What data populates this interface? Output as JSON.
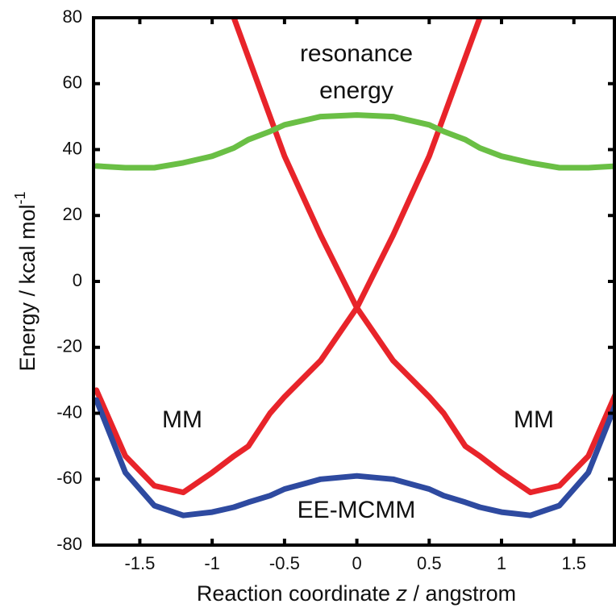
{
  "chart_data": {
    "type": "line",
    "x_label": [
      "Reaction coordinate ",
      "z",
      " / angstrom"
    ],
    "y_label": "Energy / kcal mol",
    "y_label_sup": "-1",
    "annotations": [
      "resonance",
      "energy",
      "MM",
      "MM",
      "EE-MCMM"
    ],
    "x": [
      -1.8,
      -1.6,
      -1.4,
      -1.2,
      -1,
      -0.85,
      -0.75,
      -0.6,
      -0.5,
      -0.25,
      0,
      0.25,
      0.5,
      0.6,
      0.75,
      0.85,
      1,
      1.2,
      1.4,
      1.6,
      1.8
    ],
    "series": [
      {
        "color": "#e8242a",
        "values": [
          null,
          null,
          null,
          null,
          null,
          80,
          68,
          50,
          38,
          14,
          -8,
          -24,
          -35,
          -40,
          -50,
          -53,
          -58,
          -64,
          -62,
          -53,
          -33
        ]
      },
      {
        "color": "#e8242a",
        "values": [
          -33,
          -53,
          -62,
          -64,
          -58,
          -53,
          -50,
          -40,
          -35,
          -24,
          -8,
          14,
          38,
          50,
          68,
          80,
          null,
          null,
          null,
          null,
          null
        ]
      },
      {
        "color": "#2e4aa0",
        "values": [
          -36,
          -58,
          -68,
          -71,
          -70,
          -68.5,
          -67,
          -65,
          -63,
          -60,
          -59,
          -60,
          -63,
          -65,
          -67,
          -68.5,
          -70,
          -71,
          -68,
          -58,
          -36
        ]
      },
      {
        "color": "#6abf45",
        "values": [
          35,
          34.5,
          34.5,
          36,
          38,
          40.5,
          43,
          45.5,
          47.5,
          50,
          50.5,
          50,
          47.5,
          45.5,
          43,
          40.5,
          38,
          36,
          34.5,
          34.5,
          35
        ]
      }
    ],
    "xlim": [
      -1.82,
      1.78
    ],
    "ylim": [
      -80,
      80
    ],
    "xticks": [
      -1.5,
      -1,
      -0.5,
      0,
      0.5,
      1,
      1.5
    ],
    "yticks": [
      -80,
      -60,
      -40,
      -20,
      0,
      20,
      40,
      60,
      80
    ]
  }
}
